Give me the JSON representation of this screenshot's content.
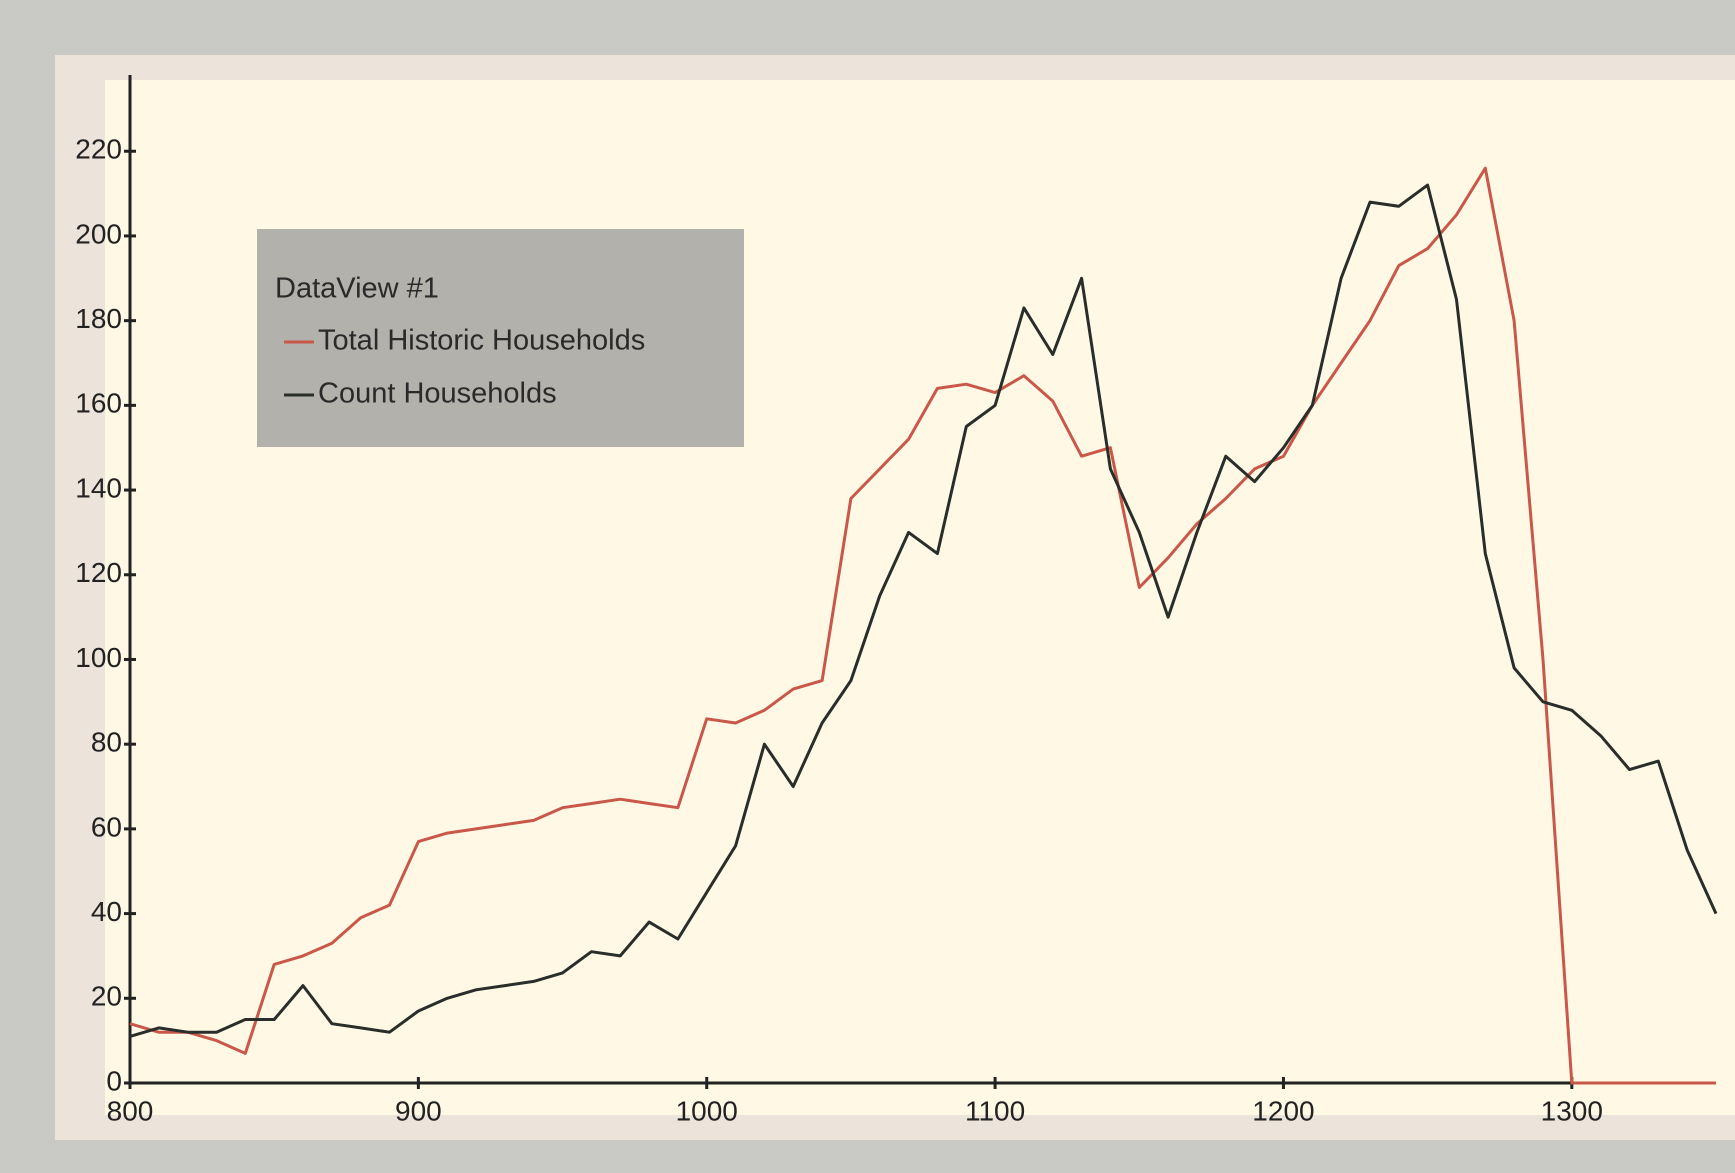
{
  "chart_data": {
    "type": "line",
    "legend_title": "DataView #1",
    "x": [
      800,
      810,
      820,
      830,
      840,
      850,
      860,
      870,
      880,
      890,
      900,
      910,
      920,
      930,
      940,
      950,
      960,
      970,
      980,
      990,
      1000,
      1010,
      1020,
      1030,
      1040,
      1050,
      1060,
      1070,
      1080,
      1090,
      1100,
      1110,
      1120,
      1130,
      1140,
      1150,
      1160,
      1170,
      1180,
      1190,
      1200,
      1210,
      1220,
      1230,
      1240,
      1250,
      1260,
      1270,
      1280,
      1290,
      1300,
      1310,
      1320,
      1330,
      1340,
      1350
    ],
    "series": [
      {
        "name": "Total Historic Households",
        "color": "#c8584a",
        "values": [
          14,
          12,
          12,
          10,
          7,
          28,
          30,
          33,
          39,
          42,
          57,
          59,
          60,
          61,
          62,
          65,
          66,
          67,
          66,
          65,
          86,
          85,
          88,
          93,
          95,
          138,
          145,
          152,
          164,
          165,
          163,
          167,
          161,
          148,
          150,
          117,
          124,
          132,
          138,
          145,
          148,
          160,
          170,
          180,
          193,
          197,
          205,
          216,
          180,
          100,
          0,
          0,
          0,
          0,
          0,
          0
        ]
      },
      {
        "name": "Count Households",
        "color": "#2a2e2a",
        "values": [
          11,
          13,
          12,
          12,
          15,
          15,
          23,
          14,
          13,
          12,
          17,
          20,
          22,
          23,
          24,
          26,
          31,
          30,
          38,
          34,
          45,
          56,
          80,
          70,
          85,
          95,
          115,
          130,
          125,
          155,
          160,
          183,
          172,
          190,
          145,
          130,
          110,
          130,
          148,
          142,
          150,
          160,
          190,
          208,
          207,
          212,
          185,
          125,
          98,
          90,
          88,
          82,
          74,
          76,
          55,
          40
        ]
      }
    ],
    "xlim": [
      800,
      1350
    ],
    "ylim": [
      0,
      238
    ],
    "xticks": [
      800,
      900,
      1000,
      1100,
      1200,
      1300
    ],
    "yticks": [
      0,
      20,
      40,
      60,
      80,
      100,
      120,
      140,
      160,
      180,
      200,
      220
    ],
    "legend": "upper left"
  }
}
